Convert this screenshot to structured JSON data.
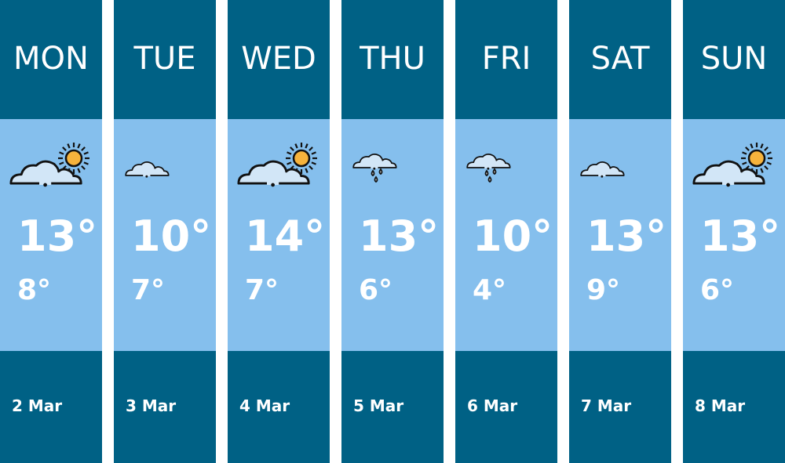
{
  "days": [
    {
      "day": "MON",
      "icon": "partly-sunny-icon",
      "high": "13°",
      "low": "8°",
      "date": "2 Mar"
    },
    {
      "day": "TUE",
      "icon": "cloud-icon",
      "high": "10°",
      "low": "7°",
      "date": "3 Mar"
    },
    {
      "day": "WED",
      "icon": "partly-sunny-icon",
      "high": "14°",
      "low": "7°",
      "date": "4 Mar"
    },
    {
      "day": "THU",
      "icon": "rain-icon",
      "high": "13°",
      "low": "6°",
      "date": "5 Mar"
    },
    {
      "day": "FRI",
      "icon": "rain-icon",
      "high": "10°",
      "low": "4°",
      "date": "6 Mar"
    },
    {
      "day": "SAT",
      "icon": "cloud-icon",
      "high": "13°",
      "low": "9°",
      "date": "7 Mar"
    },
    {
      "day": "SUN",
      "icon": "partly-sunny-icon",
      "high": "13°",
      "low": "6°",
      "date": "8 Mar"
    }
  ],
  "colors": {
    "header": "#006185",
    "body": "#85bfed",
    "cloud": "#d2e6f7",
    "sun": "#f6b33c"
  }
}
